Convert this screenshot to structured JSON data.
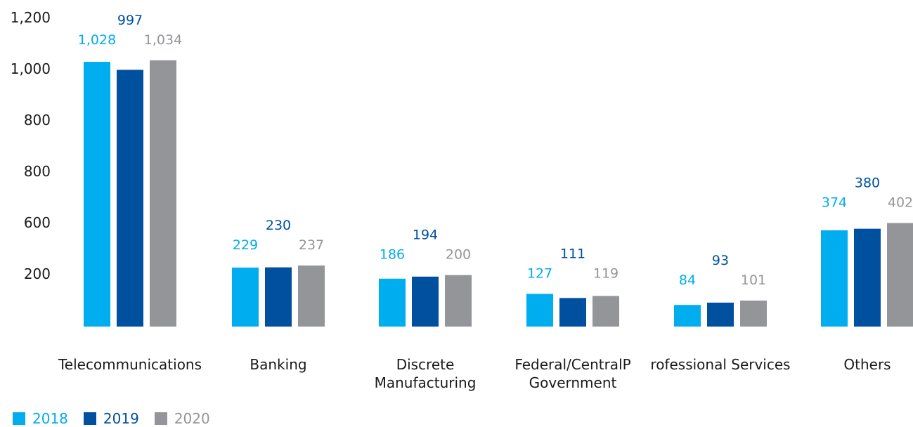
{
  "chart_data": {
    "type": "bar",
    "categories": [
      [
        "Telecommunications"
      ],
      [
        "Banking"
      ],
      [
        "Discrete",
        "Manufacturing"
      ],
      [
        "Federal/CentralP",
        "Government"
      ],
      [
        "rofessional Services"
      ],
      [
        "Others"
      ]
    ],
    "series": [
      {
        "name": "2018",
        "color": "#00adef",
        "values": [
          1028,
          229,
          186,
          127,
          84,
          374
        ],
        "labels": [
          "1,028",
          "229",
          "186",
          "127",
          "84",
          "374"
        ]
      },
      {
        "name": "2019",
        "color": "#0050a0",
        "values": [
          997,
          230,
          194,
          111,
          93,
          380
        ],
        "labels": [
          "997",
          "230",
          "194",
          "111",
          "93",
          "380"
        ]
      },
      {
        "name": "2020",
        "color": "#939598",
        "values": [
          1034,
          237,
          200,
          119,
          101,
          402
        ],
        "labels": [
          "1,034",
          "237",
          "200",
          "119",
          "101",
          "402"
        ]
      }
    ],
    "y_tick_labels": [
      "1,200",
      "1,000",
      "800",
      "800",
      "600",
      "200"
    ],
    "ylim": [
      0,
      1200
    ],
    "grid": false,
    "legend_position": "bottom-left"
  }
}
